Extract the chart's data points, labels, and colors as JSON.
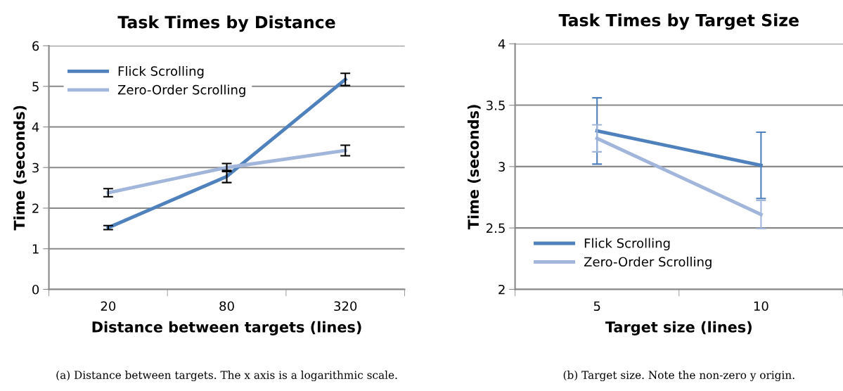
{
  "chart_data": [
    {
      "type": "line",
      "title": "Task Times by Distance",
      "xlabel": "Distance between targets (lines)",
      "ylabel": "Time (seconds)",
      "categories": [
        "20",
        "80",
        "320"
      ],
      "series": [
        {
          "name": "Flick Scrolling",
          "color": "#4f81bd",
          "values": [
            1.52,
            2.78,
            5.17
          ],
          "errors": [
            0.05,
            0.15,
            0.15
          ]
        },
        {
          "name": "Zero-Order Scrolling",
          "color": "#a1b6da",
          "values": [
            2.38,
            3.0,
            3.42
          ],
          "errors": [
            0.1,
            0.1,
            0.13
          ]
        }
      ],
      "ylim": [
        0,
        6
      ],
      "yticks": [
        0,
        1,
        2,
        3,
        4,
        5,
        6
      ],
      "grid": "y",
      "legend": "top left",
      "marker": "none",
      "line_style": "solid",
      "annotations": [
        "(a) Distance between targets. The x axis is a logarithmic scale."
      ]
    },
    {
      "type": "line",
      "title": "Task Times by Target Size",
      "xlabel": "Target size (lines)",
      "ylabel": "Time (seconds)",
      "categories": [
        "5",
        "10"
      ],
      "series": [
        {
          "name": "Flick Scrolling",
          "color": "#4f81bd",
          "values": [
            3.29,
            3.01
          ],
          "errors": [
            0.27,
            0.27
          ]
        },
        {
          "name": "Zero-Order Scrolling",
          "color": "#a1b6da",
          "values": [
            3.23,
            2.61
          ],
          "errors": [
            0.11,
            0.115
          ]
        }
      ],
      "ylim": [
        2,
        4
      ],
      "yticks": [
        2,
        2.5,
        3,
        3.5,
        4
      ],
      "grid": "y",
      "legend": "bottom left",
      "marker": "none",
      "line_style": "solid",
      "annotations": [
        "(b) Target size. Note the non-zero y origin."
      ]
    }
  ]
}
